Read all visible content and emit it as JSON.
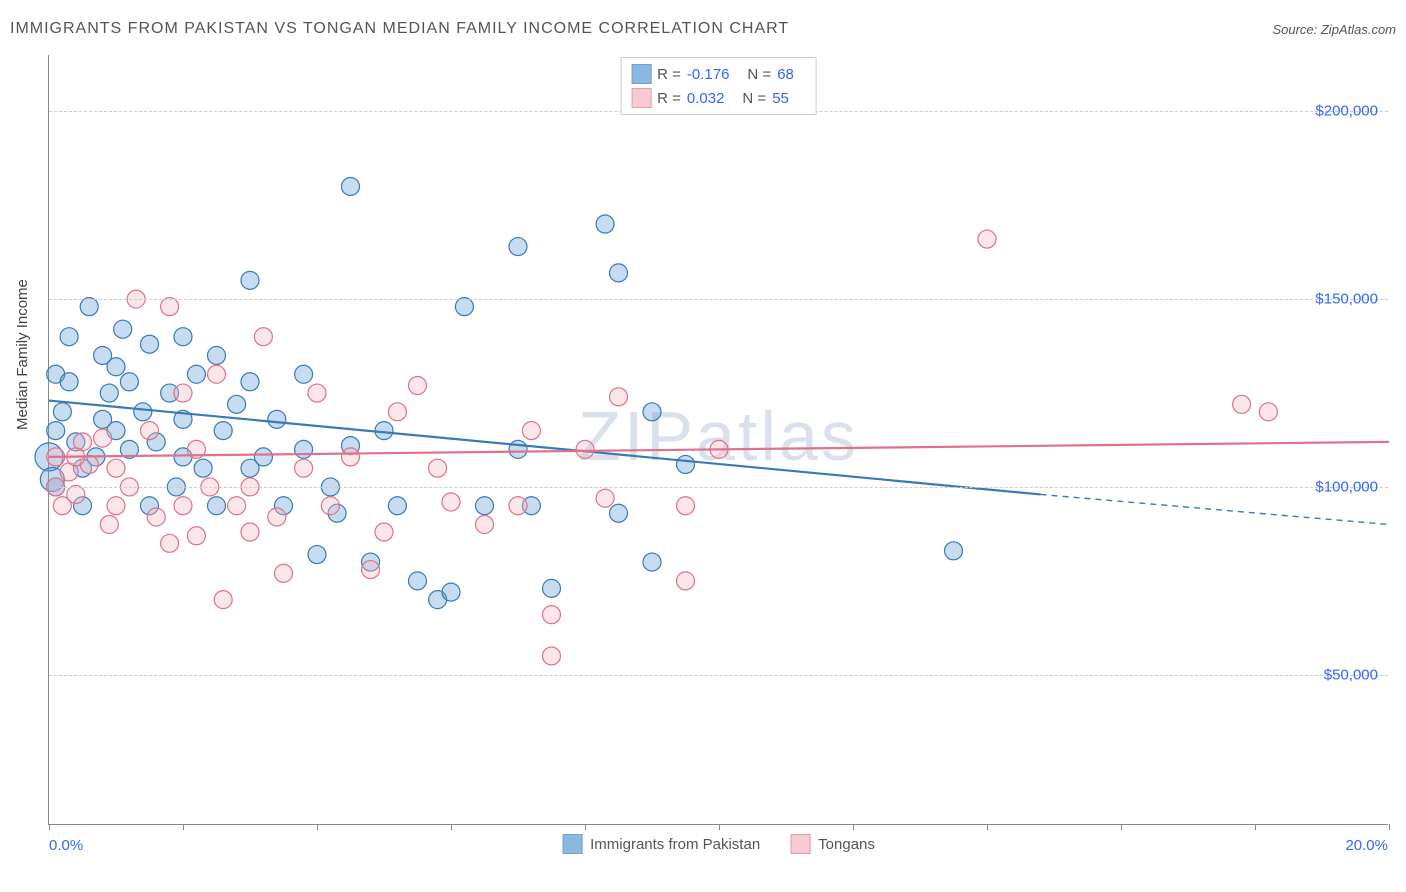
{
  "title": "IMMIGRANTS FROM PAKISTAN VS TONGAN MEDIAN FAMILY INCOME CORRELATION CHART",
  "source_label": "Source: ZipAtlas.com",
  "watermark": "ZIPatlas",
  "chart": {
    "type": "scatter",
    "background_color": "#ffffff",
    "grid_color": "#cccccc",
    "axis_color": "#888888",
    "value_color": "#3366ff",
    "text_color": "#555555",
    "title_fontsize": 16,
    "label_fontsize": 15,
    "tick_fontsize": 15,
    "ylabel": "Median Family Income",
    "xlim": [
      0.0,
      20.0
    ],
    "ylim": [
      10000,
      215000
    ],
    "yticks": [
      50000,
      100000,
      150000,
      200000
    ],
    "ytick_labels": [
      "$50,000",
      "$100,000",
      "$150,000",
      "$200,000"
    ],
    "xtick_positions": [
      0,
      2,
      4,
      6,
      8,
      10,
      12,
      14,
      16,
      18,
      20
    ],
    "xlabel_start": "0.0%",
    "xlabel_end": "20.0%",
    "marker_radius": 9,
    "marker_stroke_width": 1.2,
    "marker_fill_opacity": 0.35,
    "trend_line_width": 2.2,
    "series": [
      {
        "name": "Immigrants from Pakistan",
        "color": "#5b9bd5",
        "stroke": "#3a7ab5",
        "r_value": "-0.176",
        "n_value": "68",
        "trend": {
          "x1": 0.0,
          "y1": 123000,
          "x2": 14.8,
          "y2": 98000,
          "dash_x2": 20.0,
          "dash_y2": 90000
        },
        "points": [
          [
            0.0,
            108000,
            14
          ],
          [
            0.05,
            102000,
            12
          ],
          [
            0.1,
            130000,
            9
          ],
          [
            0.1,
            115000,
            9
          ],
          [
            0.1,
            100000,
            9
          ],
          [
            0.2,
            120000,
            9
          ],
          [
            0.3,
            128000,
            9
          ],
          [
            0.3,
            140000,
            9
          ],
          [
            0.4,
            112000,
            9
          ],
          [
            0.5,
            105000,
            9
          ],
          [
            0.6,
            148000,
            9
          ],
          [
            0.8,
            135000,
            9
          ],
          [
            0.8,
            118000,
            9
          ],
          [
            0.9,
            125000,
            9
          ],
          [
            1.0,
            132000,
            9
          ],
          [
            1.0,
            115000,
            9
          ],
          [
            1.2,
            128000,
            9
          ],
          [
            1.2,
            110000,
            9
          ],
          [
            1.4,
            120000,
            9
          ],
          [
            1.5,
            138000,
            9
          ],
          [
            1.6,
            112000,
            9
          ],
          [
            1.8,
            125000,
            9
          ],
          [
            1.9,
            100000,
            9
          ],
          [
            2.0,
            140000,
            9
          ],
          [
            2.0,
            118000,
            9
          ],
          [
            2.2,
            130000,
            9
          ],
          [
            2.3,
            105000,
            9
          ],
          [
            2.5,
            135000,
            9
          ],
          [
            2.6,
            115000,
            9
          ],
          [
            2.8,
            122000,
            9
          ],
          [
            3.0,
            155000,
            9
          ],
          [
            3.0,
            128000,
            9
          ],
          [
            3.2,
            108000,
            9
          ],
          [
            3.4,
            118000,
            9
          ],
          [
            3.5,
            95000,
            9
          ],
          [
            3.8,
            130000,
            9
          ],
          [
            4.0,
            82000,
            9
          ],
          [
            4.2,
            100000,
            9
          ],
          [
            4.3,
            93000,
            9
          ],
          [
            4.5,
            180000,
            9
          ],
          [
            4.5,
            111000,
            9
          ],
          [
            4.8,
            80000,
            9
          ],
          [
            5.0,
            115000,
            9
          ],
          [
            5.2,
            95000,
            9
          ],
          [
            5.5,
            75000,
            9
          ],
          [
            5.8,
            70000,
            9
          ],
          [
            6.0,
            72000,
            9
          ],
          [
            6.2,
            148000,
            9
          ],
          [
            6.5,
            95000,
            9
          ],
          [
            7.0,
            164000,
            9
          ],
          [
            7.0,
            110000,
            9
          ],
          [
            7.2,
            95000,
            9
          ],
          [
            7.5,
            73000,
            9
          ],
          [
            8.5,
            93000,
            9
          ],
          [
            8.3,
            170000,
            9
          ],
          [
            8.5,
            157000,
            9
          ],
          [
            9.0,
            120000,
            9
          ],
          [
            9.0,
            80000,
            9
          ],
          [
            9.5,
            106000,
            9
          ],
          [
            13.5,
            83000,
            9
          ],
          [
            0.5,
            95000,
            9
          ],
          [
            1.5,
            95000,
            9
          ],
          [
            2.0,
            108000,
            9
          ],
          [
            2.5,
            95000,
            9
          ],
          [
            3.0,
            105000,
            9
          ],
          [
            3.8,
            110000,
            9
          ],
          [
            1.1,
            142000,
            9
          ],
          [
            0.7,
            108000,
            9
          ]
        ]
      },
      {
        "name": "Tongans",
        "color": "#f4b6c2",
        "stroke": "#e0718a",
        "r_value": "0.032",
        "n_value": "55",
        "trend": {
          "x1": 0.0,
          "y1": 108000,
          "x2": 20.0,
          "y2": 112000
        },
        "points": [
          [
            0.1,
            100000,
            9
          ],
          [
            0.1,
            108000,
            9
          ],
          [
            0.2,
            95000,
            9
          ],
          [
            0.3,
            104000,
            9
          ],
          [
            0.4,
            98000,
            9
          ],
          [
            0.5,
            112000,
            9
          ],
          [
            0.6,
            106000,
            9
          ],
          [
            0.8,
            113000,
            9
          ],
          [
            1.0,
            95000,
            9
          ],
          [
            1.0,
            105000,
            9
          ],
          [
            1.3,
            150000,
            9
          ],
          [
            1.5,
            115000,
            9
          ],
          [
            1.6,
            92000,
            9
          ],
          [
            1.8,
            85000,
            9
          ],
          [
            1.8,
            148000,
            9
          ],
          [
            2.0,
            125000,
            9
          ],
          [
            2.2,
            87000,
            9
          ],
          [
            2.2,
            110000,
            9
          ],
          [
            2.4,
            100000,
            9
          ],
          [
            2.5,
            130000,
            9
          ],
          [
            2.6,
            70000,
            9
          ],
          [
            2.8,
            95000,
            9
          ],
          [
            3.0,
            88000,
            9
          ],
          [
            3.2,
            140000,
            9
          ],
          [
            3.4,
            92000,
            9
          ],
          [
            3.5,
            77000,
            9
          ],
          [
            3.8,
            105000,
            9
          ],
          [
            4.0,
            125000,
            9
          ],
          [
            4.2,
            95000,
            9
          ],
          [
            4.5,
            108000,
            9
          ],
          [
            5.0,
            88000,
            9
          ],
          [
            5.2,
            120000,
            9
          ],
          [
            5.5,
            127000,
            9
          ],
          [
            5.8,
            105000,
            9
          ],
          [
            6.0,
            96000,
            9
          ],
          [
            6.5,
            90000,
            9
          ],
          [
            7.0,
            95000,
            9
          ],
          [
            7.2,
            115000,
            9
          ],
          [
            7.5,
            66000,
            9
          ],
          [
            7.5,
            55000,
            9
          ],
          [
            8.0,
            110000,
            9
          ],
          [
            8.3,
            97000,
            9
          ],
          [
            8.5,
            124000,
            9
          ],
          [
            9.5,
            95000,
            9
          ],
          [
            9.5,
            75000,
            9
          ],
          [
            10.0,
            110000,
            9
          ],
          [
            14.0,
            166000,
            9
          ],
          [
            17.8,
            122000,
            9
          ],
          [
            18.2,
            120000,
            9
          ],
          [
            2.0,
            95000,
            9
          ],
          [
            3.0,
            100000,
            9
          ],
          [
            4.8,
            78000,
            9
          ],
          [
            1.2,
            100000,
            9
          ],
          [
            0.9,
            90000,
            9
          ],
          [
            0.4,
            108000,
            9
          ]
        ]
      }
    ],
    "legend_top_label_r": "R =",
    "legend_top_label_n": "N ="
  }
}
